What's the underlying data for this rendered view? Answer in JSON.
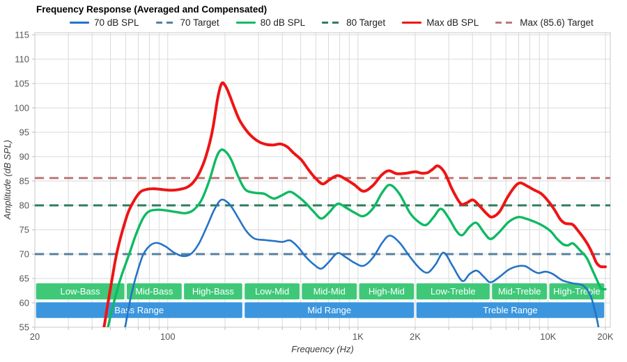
{
  "title": "Frequency Response (Averaged and Compensated)",
  "legend": [
    {
      "label": "70 dB SPL",
      "color": "#2473c5",
      "dashed": false
    },
    {
      "label": "70 Target",
      "color": "#56809e",
      "dashed": true
    },
    {
      "label": "80 dB SPL",
      "color": "#0eba62",
      "dashed": false
    },
    {
      "label": "80 Target",
      "color": "#2e7d5c",
      "dashed": true
    },
    {
      "label": "Max dB SPL",
      "color": "#ee1414",
      "dashed": false
    },
    {
      "label": "Max (85.6) Target",
      "color": "#bd7878",
      "dashed": true
    }
  ],
  "chart_data": {
    "type": "line",
    "x_scale": "log",
    "xlabel": "Frequency (Hz)",
    "ylabel": "Amplitude (dB SPL)",
    "xlim": [
      20,
      20000
    ],
    "ylim": [
      55,
      115
    ],
    "y_tick_step": 5,
    "y_tick_labels": [
      "55",
      "60",
      "65",
      "70",
      "75",
      "80",
      "85",
      "90",
      "95",
      "100",
      "105",
      "110",
      "115"
    ],
    "x_tick_labels": [
      {
        "f": 20,
        "label": "20"
      },
      {
        "f": 100,
        "label": "100"
      },
      {
        "f": 1000,
        "label": "1K"
      },
      {
        "f": 2000,
        "label": "2K"
      },
      {
        "f": 10000,
        "label": "10K"
      },
      {
        "f": 20000,
        "label": "20K"
      }
    ],
    "grid": true,
    "legend_position": "top",
    "targets": [
      {
        "name": "70 Target",
        "value": 70,
        "color": "#56809e"
      },
      {
        "name": "80 Target",
        "value": 80,
        "color": "#2e7d5c"
      },
      {
        "name": "Max (85.6) Target",
        "value": 85.6,
        "color": "#bd7878"
      }
    ],
    "series": [
      {
        "name": "70 dB SPL",
        "color": "#2473c5",
        "width": 2.6,
        "points": [
          [
            58,
            53
          ],
          [
            60,
            55.5
          ],
          [
            63,
            60
          ],
          [
            66,
            63.5
          ],
          [
            70,
            67
          ],
          [
            74.5,
            70
          ],
          [
            81,
            71.8
          ],
          [
            88,
            72.3
          ],
          [
            97,
            71.6
          ],
          [
            108,
            70.3
          ],
          [
            120,
            69.6
          ],
          [
            132,
            70
          ],
          [
            145,
            72
          ],
          [
            160,
            75.5
          ],
          [
            175,
            79
          ],
          [
            190,
            81.1
          ],
          [
            205,
            80.7
          ],
          [
            218,
            79.5
          ],
          [
            235,
            77.4
          ],
          [
            258,
            74.8
          ],
          [
            285,
            73.2
          ],
          [
            320,
            72.9
          ],
          [
            360,
            72.7
          ],
          [
            400,
            72.5
          ],
          [
            440,
            72.8
          ],
          [
            485,
            71.4
          ],
          [
            530,
            69.5
          ],
          [
            585,
            67.9
          ],
          [
            640,
            67
          ],
          [
            700,
            68.3
          ],
          [
            780,
            70.2
          ],
          [
            860,
            69.4
          ],
          [
            960,
            68.2
          ],
          [
            1070,
            67.6
          ],
          [
            1200,
            69.3
          ],
          [
            1340,
            72.3
          ],
          [
            1470,
            73.8
          ],
          [
            1650,
            72.4
          ],
          [
            1880,
            69.4
          ],
          [
            2120,
            67
          ],
          [
            2330,
            66.2
          ],
          [
            2560,
            67.9
          ],
          [
            2820,
            70.3
          ],
          [
            3120,
            67.8
          ],
          [
            3530,
            64.5
          ],
          [
            3860,
            65.9
          ],
          [
            4220,
            66.6
          ],
          [
            4600,
            65.3
          ],
          [
            4970,
            64.2
          ],
          [
            5500,
            65.2
          ],
          [
            6200,
            66.8
          ],
          [
            6900,
            67.5
          ],
          [
            7600,
            67.5
          ],
          [
            8300,
            66.6
          ],
          [
            8900,
            66.1
          ],
          [
            9700,
            66.4
          ],
          [
            10600,
            65.9
          ],
          [
            11900,
            64.6
          ],
          [
            13500,
            64
          ],
          [
            15200,
            63.6
          ],
          [
            16600,
            61.7
          ],
          [
            17600,
            58.5
          ],
          [
            18400,
            55
          ],
          [
            18700,
            53
          ]
        ]
      },
      {
        "name": "80 dB SPL",
        "color": "#0eba62",
        "width": 3.4,
        "points": [
          [
            47,
            52
          ],
          [
            48.5,
            55
          ],
          [
            52,
            60
          ],
          [
            56.5,
            65
          ],
          [
            62.7,
            70
          ],
          [
            68,
            74
          ],
          [
            74,
            77.3
          ],
          [
            80,
            78.8
          ],
          [
            90,
            79.1
          ],
          [
            100,
            78.9
          ],
          [
            112,
            78.6
          ],
          [
            124,
            78.4
          ],
          [
            136,
            79
          ],
          [
            150,
            81
          ],
          [
            165,
            85
          ],
          [
            180,
            89.8
          ],
          [
            191,
            91.4
          ],
          [
            203,
            90.9
          ],
          [
            216,
            89.3
          ],
          [
            233,
            86.2
          ],
          [
            255,
            83.3
          ],
          [
            285,
            82.6
          ],
          [
            320,
            82.4
          ],
          [
            345,
            81.7
          ],
          [
            365,
            81.4
          ],
          [
            400,
            82.1
          ],
          [
            440,
            82.8
          ],
          [
            485,
            81.8
          ],
          [
            530,
            80.5
          ],
          [
            585,
            78.7
          ],
          [
            640,
            77.3
          ],
          [
            700,
            78.4
          ],
          [
            780,
            80.3
          ],
          [
            860,
            79.6
          ],
          [
            960,
            78.5
          ],
          [
            1070,
            77.8
          ],
          [
            1200,
            79.4
          ],
          [
            1340,
            82.6
          ],
          [
            1470,
            84.2
          ],
          [
            1650,
            82.4
          ],
          [
            1880,
            78.4
          ],
          [
            2100,
            76.5
          ],
          [
            2290,
            76
          ],
          [
            2500,
            77.6
          ],
          [
            2730,
            79.3
          ],
          [
            3000,
            77.4
          ],
          [
            3300,
            74.7
          ],
          [
            3540,
            73.9
          ],
          [
            3860,
            75.6
          ],
          [
            4200,
            76.4
          ],
          [
            4600,
            74.4
          ],
          [
            4980,
            73.1
          ],
          [
            5500,
            74.4
          ],
          [
            6200,
            76.6
          ],
          [
            6950,
            77.6
          ],
          [
            7600,
            77.3
          ],
          [
            8400,
            76.7
          ],
          [
            9200,
            76
          ],
          [
            10300,
            74.7
          ],
          [
            11100,
            73.2
          ],
          [
            12000,
            72
          ],
          [
            12700,
            71.8
          ],
          [
            13500,
            72.2
          ],
          [
            14600,
            70.9
          ],
          [
            15900,
            69.3
          ],
          [
            17000,
            66.9
          ],
          [
            17900,
            65
          ],
          [
            18700,
            63.4
          ],
          [
            19300,
            62.8
          ],
          [
            20000,
            62.8
          ]
        ]
      },
      {
        "name": "Max dB SPL",
        "color": "#ee1414",
        "width": 4,
        "points": [
          [
            44.5,
            52
          ],
          [
            46.2,
            55
          ],
          [
            48.5,
            60
          ],
          [
            51,
            65
          ],
          [
            53.8,
            70
          ],
          [
            57.5,
            74.5
          ],
          [
            62,
            78.6
          ],
          [
            67,
            81.2
          ],
          [
            72,
            82.8
          ],
          [
            78,
            83.3
          ],
          [
            86,
            83.4
          ],
          [
            96,
            83.2
          ],
          [
            106,
            83.1
          ],
          [
            116,
            83.3
          ],
          [
            126,
            83.7
          ],
          [
            136,
            84.7
          ],
          [
            148,
            87
          ],
          [
            160,
            90.5
          ],
          [
            172,
            95.5
          ],
          [
            183,
            102
          ],
          [
            192,
            105
          ],
          [
            201,
            104.5
          ],
          [
            211,
            102.7
          ],
          [
            223,
            100.2
          ],
          [
            237,
            97.7
          ],
          [
            253,
            95.9
          ],
          [
            272,
            94.4
          ],
          [
            300,
            93.1
          ],
          [
            330,
            92.5
          ],
          [
            360,
            92.4
          ],
          [
            392,
            92.6
          ],
          [
            425,
            92
          ],
          [
            460,
            90.7
          ],
          [
            505,
            89.3
          ],
          [
            552,
            87.2
          ],
          [
            600,
            85.5
          ],
          [
            652,
            84.4
          ],
          [
            705,
            85.2
          ],
          [
            780,
            86.1
          ],
          [
            860,
            85.4
          ],
          [
            960,
            84.2
          ],
          [
            1070,
            82.9
          ],
          [
            1200,
            84.1
          ],
          [
            1330,
            86.2
          ],
          [
            1450,
            87.1
          ],
          [
            1600,
            86.5
          ],
          [
            1800,
            86.6
          ],
          [
            2000,
            86.9
          ],
          [
            2160,
            86.6
          ],
          [
            2320,
            86.7
          ],
          [
            2470,
            87.4
          ],
          [
            2630,
            88.1
          ],
          [
            2860,
            86.7
          ],
          [
            3120,
            83.4
          ],
          [
            3460,
            80.4
          ],
          [
            3720,
            80.5
          ],
          [
            4030,
            81.1
          ],
          [
            4400,
            79.7
          ],
          [
            4750,
            78.3
          ],
          [
            5060,
            77.6
          ],
          [
            5550,
            78.7
          ],
          [
            6100,
            81.6
          ],
          [
            6700,
            83.9
          ],
          [
            7150,
            84.6
          ],
          [
            7800,
            83.9
          ],
          [
            8500,
            83.1
          ],
          [
            9200,
            82.4
          ],
          [
            10000,
            80.9
          ],
          [
            10800,
            79.1
          ],
          [
            11600,
            77.1
          ],
          [
            12300,
            76.3
          ],
          [
            13400,
            76.1
          ],
          [
            14300,
            74.9
          ],
          [
            15300,
            73.4
          ],
          [
            16200,
            71.9
          ],
          [
            17100,
            70.1
          ],
          [
            17900,
            68.3
          ],
          [
            18700,
            67.5
          ],
          [
            19300,
            67.4
          ],
          [
            20000,
            67.4
          ]
        ]
      }
    ],
    "bands": {
      "sub_color": "#3fc878",
      "main_color": "#3b96de",
      "sub_db_range": [
        60.7,
        64.0
      ],
      "main_db_range": [
        56.9,
        60.1
      ],
      "sub": [
        {
          "label": "Low-Bass",
          "range": [
            20,
            60
          ]
        },
        {
          "label": "Mid-Bass",
          "range": [
            60,
            120
          ]
        },
        {
          "label": "High-Bass",
          "range": [
            120,
            250
          ]
        },
        {
          "label": "Low-Mid",
          "range": [
            250,
            500
          ]
        },
        {
          "label": "Mid-Mid",
          "range": [
            500,
            1000
          ]
        },
        {
          "label": "High-Mid",
          "range": [
            1000,
            2000
          ]
        },
        {
          "label": "Low-Treble",
          "range": [
            2000,
            5000
          ]
        },
        {
          "label": "Mid-Treble",
          "range": [
            5000,
            10000
          ]
        },
        {
          "label": "High-Treble",
          "range": [
            10000,
            20000
          ]
        }
      ],
      "main": [
        {
          "label": "Bass Range",
          "range": [
            20,
            250
          ]
        },
        {
          "label": "Mid Range",
          "range": [
            250,
            2000
          ]
        },
        {
          "label": "Treble Range",
          "range": [
            2000,
            20000
          ]
        }
      ]
    }
  }
}
